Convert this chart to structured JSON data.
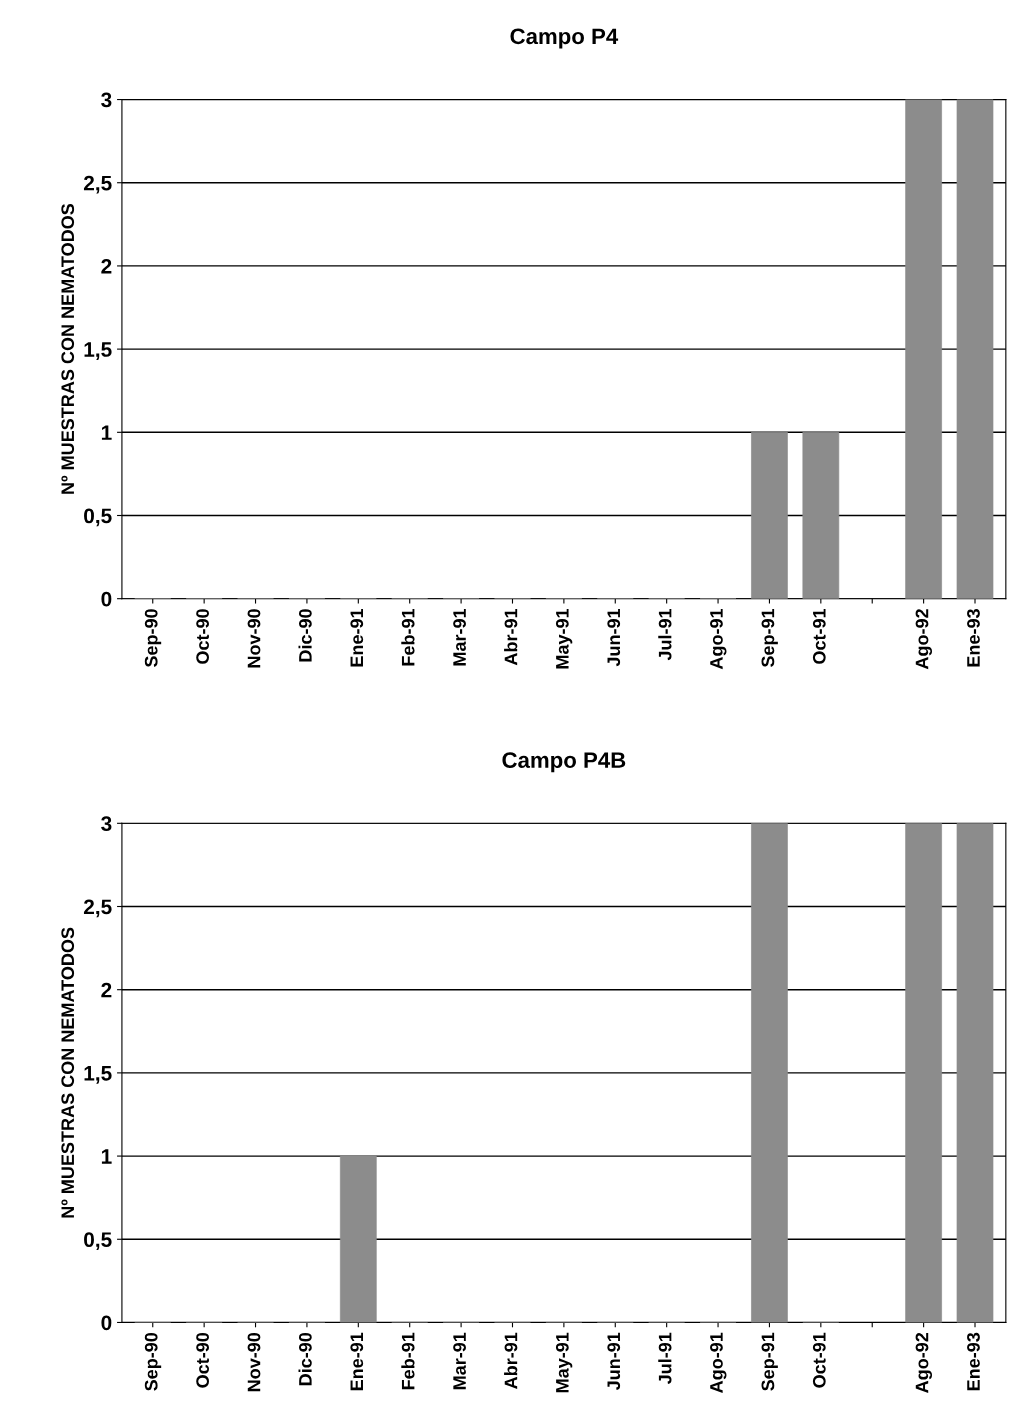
{
  "chart_data": [
    {
      "type": "bar",
      "title": "Campo P4",
      "ylabel": "Nº MUESTRAS CON NEMATODOS",
      "categories": [
        "Sep-90",
        "Oct-90",
        "Nov-90",
        "Dic-90",
        "Ene-91",
        "Feb-91",
        "Mar-91",
        "Abr-91",
        "May-91",
        "Jun-91",
        "Jul-91",
        "Ago-91",
        "Sep-91",
        "Oct-91",
        null,
        "Ago-92",
        "Ene-93"
      ],
      "values": [
        0,
        0,
        0,
        0,
        0,
        0,
        0,
        0,
        0,
        0,
        0,
        0,
        1,
        1,
        null,
        3,
        3
      ],
      "color": "#8c8c8c",
      "ylim": [
        0,
        3
      ],
      "yticks": [
        0,
        {
          "value": 0.5,
          "label": "0,5"
        },
        1,
        {
          "value": 1.5,
          "label": "1,5"
        },
        2,
        {
          "value": 2.5,
          "label": "2,5"
        },
        3
      ],
      "grid": "y"
    },
    {
      "type": "bar",
      "title": "Campo P4B",
      "ylabel": "Nº MUESTRAS CON NEMATODOS",
      "categories": [
        "Sep-90",
        "Oct-90",
        "Nov-90",
        "Dic-90",
        "Ene-91",
        "Feb-91",
        "Mar-91",
        "Abr-91",
        "May-91",
        "Jun-91",
        "Jul-91",
        "Ago-91",
        "Sep-91",
        "Oct-91",
        null,
        "Ago-92",
        "Ene-93"
      ],
      "values": [
        0,
        0,
        0,
        0,
        1,
        0,
        0,
        0,
        0,
        0,
        0,
        0,
        3,
        0,
        null,
        3,
        3
      ],
      "color": "#8c8c8c",
      "ylim": [
        0,
        3
      ],
      "yticks": [
        0,
        {
          "value": 0.5,
          "label": "0,5"
        },
        1,
        {
          "value": 1.5,
          "label": "1,5"
        },
        2,
        {
          "value": 2.5,
          "label": "2,5"
        },
        3
      ],
      "grid": "y"
    }
  ]
}
